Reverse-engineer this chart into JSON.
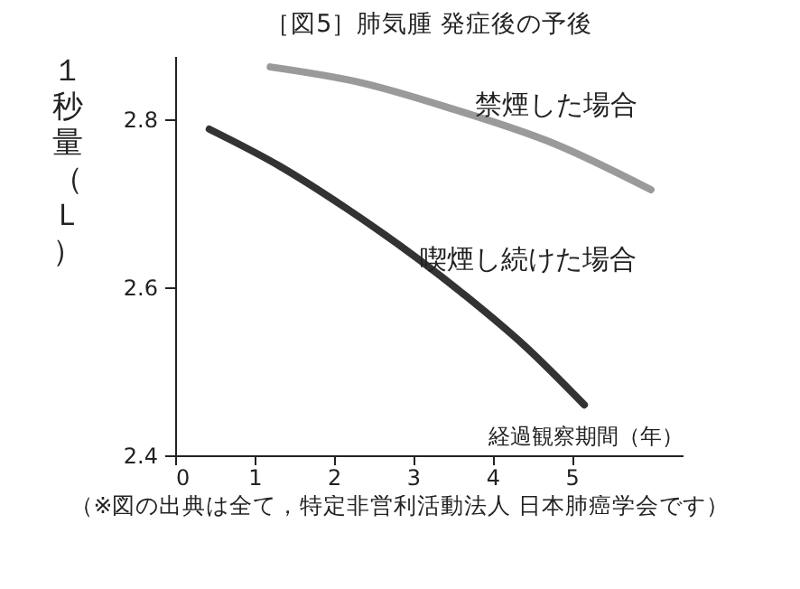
{
  "chart_data": {
    "type": "line",
    "title": "［図5］肺気腫 発症後の予後",
    "xlabel": "経過観察期間（年）",
    "ylabel": "１秒量（Ｌ）",
    "annotations": [
      "（※図の出典は全て，特定非営利活動法人 日本肺癌学会です）"
    ],
    "series": [
      {
        "name": "禁煙した場合",
        "color": "#9a9a9a",
        "x": [
          1.2,
          2.36,
          3.5,
          4.8,
          6.0
        ],
        "values": [
          2.862,
          2.843,
          2.812,
          2.77,
          2.716
        ]
      },
      {
        "name": "喫煙し続けた場合",
        "color": "#333333",
        "x": [
          0.43,
          1.3,
          2.14,
          3.66,
          4.41,
          5.16
        ],
        "values": [
          2.788,
          2.745,
          2.695,
          2.59,
          2.53,
          2.46
        ]
      }
    ],
    "xlim": [
      0,
      6.4
    ],
    "xticks": [
      0,
      1,
      2,
      3,
      4,
      5
    ],
    "ylim": [
      2.4,
      2.875
    ],
    "yticks": [
      2.4,
      2.6,
      2.8
    ],
    "grid": false,
    "legend": false,
    "marker": "none",
    "line_style": "solid"
  }
}
